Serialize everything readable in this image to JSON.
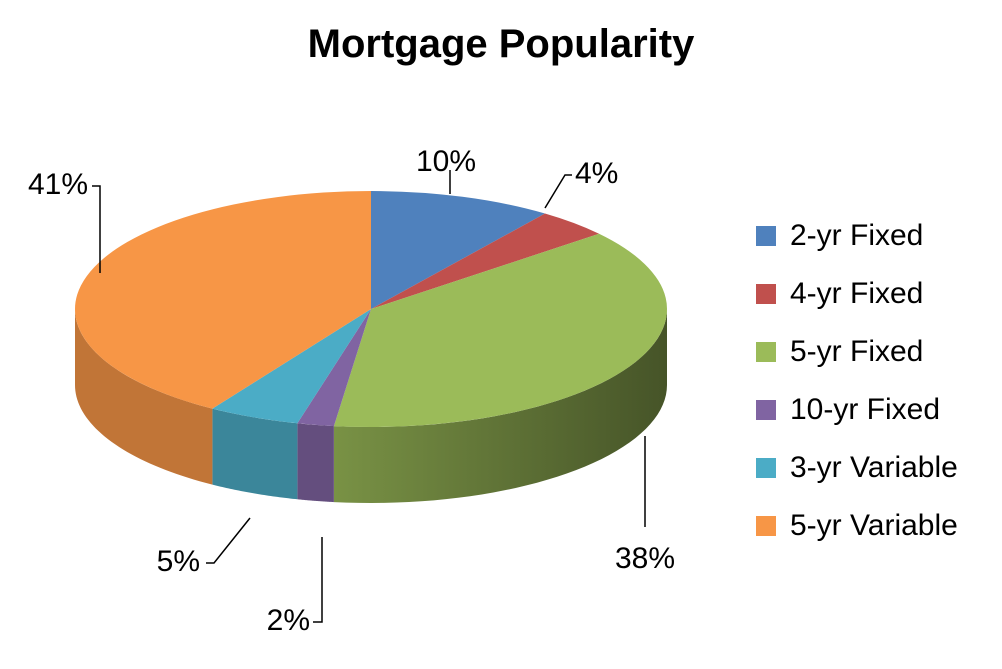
{
  "chart_data": {
    "type": "pie",
    "title": "Mortgage Popularity",
    "three_d": true,
    "legend_position": "right",
    "slices": [
      {
        "name": "2-yr Fixed",
        "value": 10,
        "label": "10%",
        "color": "#4f81bd"
      },
      {
        "name": "4-yr Fixed",
        "value": 4,
        "label": "4%",
        "color": "#c0504d"
      },
      {
        "name": "5-yr Fixed",
        "value": 38,
        "label": "38%",
        "color": "#9bbb59"
      },
      {
        "name": "10-yr Fixed",
        "value": 2,
        "label": "2%",
        "color": "#8064a2"
      },
      {
        "name": "3-yr Variable",
        "value": 5,
        "label": "5%",
        "color": "#4bacc6"
      },
      {
        "name": "5-yr Variable",
        "value": 41,
        "label": "41%",
        "color": "#f79646"
      }
    ]
  }
}
